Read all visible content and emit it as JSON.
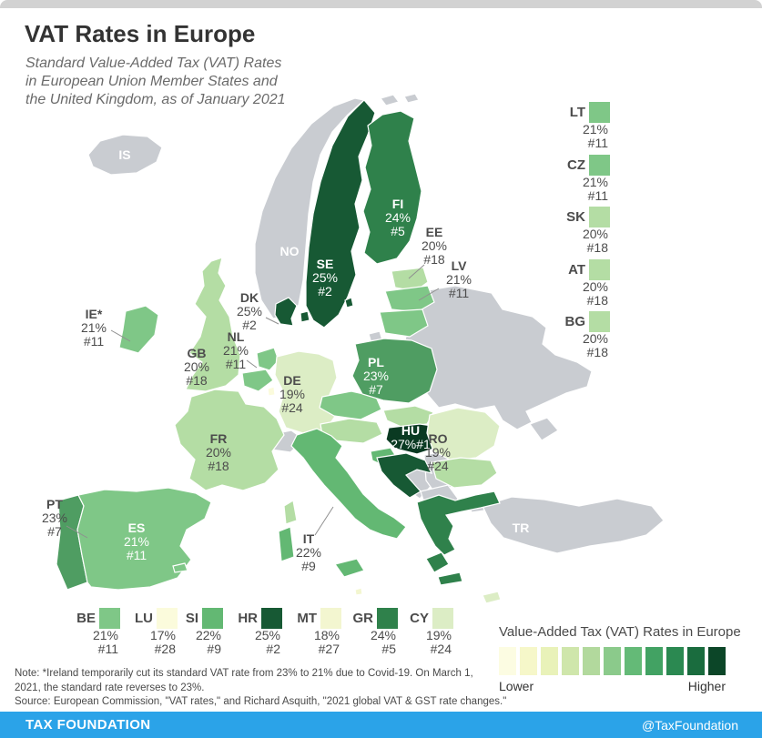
{
  "header": {
    "title": "VAT Rates in Europe",
    "subtitle_lines": [
      "Standard Value-Added Tax (VAT) Rates",
      "in European Union Member States and",
      "the United Kingdom, as of January 2021"
    ]
  },
  "chart_data": {
    "type": "choropleth",
    "title": "VAT Rates in Europe",
    "value_unit": "percent (standard VAT rate), rank among shown countries",
    "countries": [
      {
        "code": "HU",
        "rate": 27,
        "rank": 1
      },
      {
        "code": "SE",
        "rate": 25,
        "rank": 2
      },
      {
        "code": "DK",
        "rate": 25,
        "rank": 2
      },
      {
        "code": "HR",
        "rate": 25,
        "rank": 2
      },
      {
        "code": "FI",
        "rate": 24,
        "rank": 5
      },
      {
        "code": "GR",
        "rate": 24,
        "rank": 5
      },
      {
        "code": "PL",
        "rate": 23,
        "rank": 7
      },
      {
        "code": "PT",
        "rate": 23,
        "rank": 7
      },
      {
        "code": "IT",
        "rate": 22,
        "rank": 9
      },
      {
        "code": "SI",
        "rate": 22,
        "rank": 9
      },
      {
        "code": "IE",
        "rate": 21,
        "rank": 11
      },
      {
        "code": "ES",
        "rate": 21,
        "rank": 11
      },
      {
        "code": "NL",
        "rate": 21,
        "rank": 11
      },
      {
        "code": "BE",
        "rate": 21,
        "rank": 11
      },
      {
        "code": "LV",
        "rate": 21,
        "rank": 11
      },
      {
        "code": "LT",
        "rate": 21,
        "rank": 11
      },
      {
        "code": "CZ",
        "rate": 21,
        "rank": 11
      },
      {
        "code": "GB",
        "rate": 20,
        "rank": 18
      },
      {
        "code": "FR",
        "rate": 20,
        "rank": 18
      },
      {
        "code": "EE",
        "rate": 20,
        "rank": 18
      },
      {
        "code": "SK",
        "rate": 20,
        "rank": 18
      },
      {
        "code": "AT",
        "rate": 20,
        "rank": 18
      },
      {
        "code": "BG",
        "rate": 20,
        "rank": 18
      },
      {
        "code": "RO",
        "rate": 19,
        "rank": 24
      },
      {
        "code": "DE",
        "rate": 19,
        "rank": 24
      },
      {
        "code": "CY",
        "rate": 19,
        "rank": 24
      },
      {
        "code": "MT",
        "rate": 18,
        "rank": 27
      },
      {
        "code": "LU",
        "rate": 17,
        "rank": 28
      }
    ],
    "non_eu_shown": [
      "IS",
      "NO",
      "CH",
      "TR"
    ]
  },
  "map_labels": [
    {
      "code": "IE",
      "suffix": "*"
    },
    {
      "code": "GB"
    },
    {
      "code": "NL"
    },
    {
      "code": "DK"
    },
    {
      "code": "DE"
    },
    {
      "code": "FR"
    },
    {
      "code": "PT"
    },
    {
      "code": "ES"
    },
    {
      "code": "IT"
    },
    {
      "code": "SE"
    },
    {
      "code": "FI"
    },
    {
      "code": "EE"
    },
    {
      "code": "LV"
    },
    {
      "code": "PL"
    },
    {
      "code": "HU"
    },
    {
      "code": "RO"
    }
  ],
  "code_only_labels": [
    {
      "code": "IS"
    },
    {
      "code": "NO"
    },
    {
      "code": "TR"
    }
  ],
  "side_list": [
    "LT",
    "CZ",
    "SK",
    "AT",
    "BG"
  ],
  "bottom_list": [
    "BE",
    "LU",
    "SI",
    "HR",
    "MT",
    "GR",
    "CY"
  ],
  "legend": {
    "title": "Value-Added Tax (VAT) Rates in Europe",
    "low_label": "Lower",
    "high_label": "Higher",
    "ramp": [
      "#fcfce2",
      "#f6f7c9",
      "#e9f2b9",
      "#cfe6ab",
      "#b2d99d",
      "#8bca8b",
      "#64ba77",
      "#42a263",
      "#2b8951",
      "#1a6c3e",
      "#0c4628"
    ]
  },
  "colors": {
    "rate_scale": {
      "17": "#fbfbdc",
      "18": "#f3f6d0",
      "19": "#dcedc5",
      "20": "#b4dda4",
      "21": "#7fc787",
      "22": "#63b873",
      "23": "#4f9d62",
      "24": "#2f814b",
      "25": "#175934",
      "27": "#0a3a22"
    },
    "non_eu": "#c9ccd1",
    "footer_blue": "#2ba3e8"
  },
  "notes": {
    "note_line1": "Note: *Ireland temporarily cut its standard VAT rate from 23% to 21% due to Covid-19. On March 1,",
    "note_line2": "2021, the standard rate reverses to 23%.",
    "source": "Source: European Commission, \"VAT rates,\" and Richard Asquith, \"2021 global VAT & GST rate changes.\""
  },
  "footer": {
    "brand": "TAX FOUNDATION",
    "handle": "@TaxFoundation"
  }
}
